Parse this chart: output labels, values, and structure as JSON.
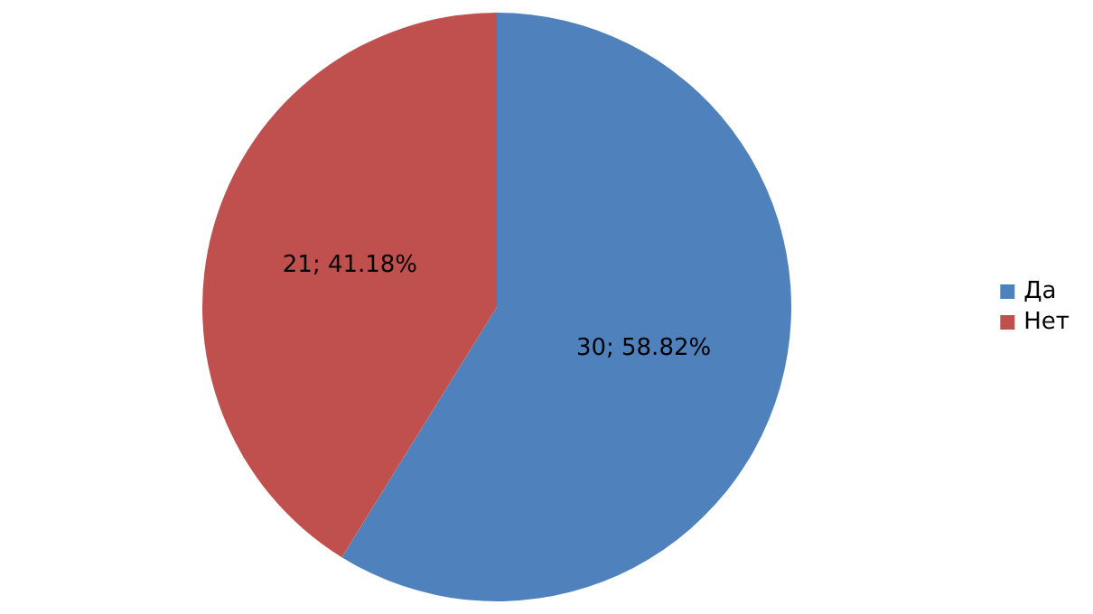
{
  "chart_data": {
    "type": "pie",
    "categories": [
      "Да",
      "Нет"
    ],
    "values": [
      30,
      21
    ],
    "colors": [
      "#4f81bd",
      "#c0504d"
    ],
    "value_labels": [
      "30; 58.82%",
      "21; 41.18%"
    ],
    "legend": "right"
  }
}
